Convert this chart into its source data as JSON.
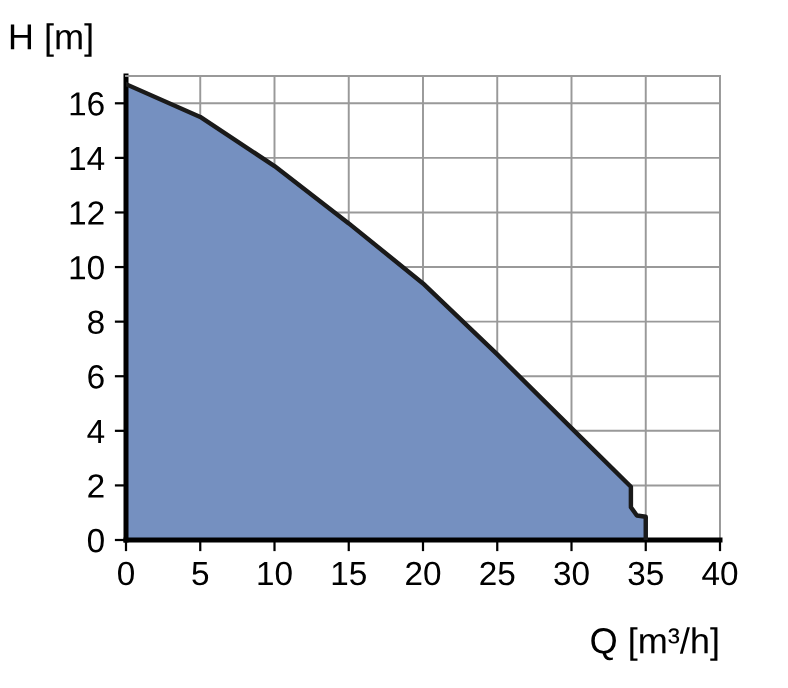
{
  "chart_data": {
    "type": "area",
    "xlabel": "Q [m³/h]",
    "ylabel": "H [m]",
    "series": [
      {
        "color": "#7590c0",
        "x": [
          0,
          5,
          10,
          15,
          20,
          25,
          30,
          34,
          34,
          34.4,
          35,
          35
        ],
        "values": [
          16.7,
          15.5,
          13.7,
          11.6,
          9.4,
          6.8,
          4.1,
          1.95,
          1.2,
          0.9,
          0.85,
          0
        ]
      }
    ],
    "xlim": [
      0,
      40
    ],
    "ylim": [
      0,
      17
    ],
    "xticks": [
      0,
      5,
      10,
      15,
      20,
      25,
      30,
      35,
      40
    ],
    "yticks": [
      0,
      2,
      4,
      6,
      8,
      10,
      12,
      14,
      16
    ],
    "grid": true
  }
}
